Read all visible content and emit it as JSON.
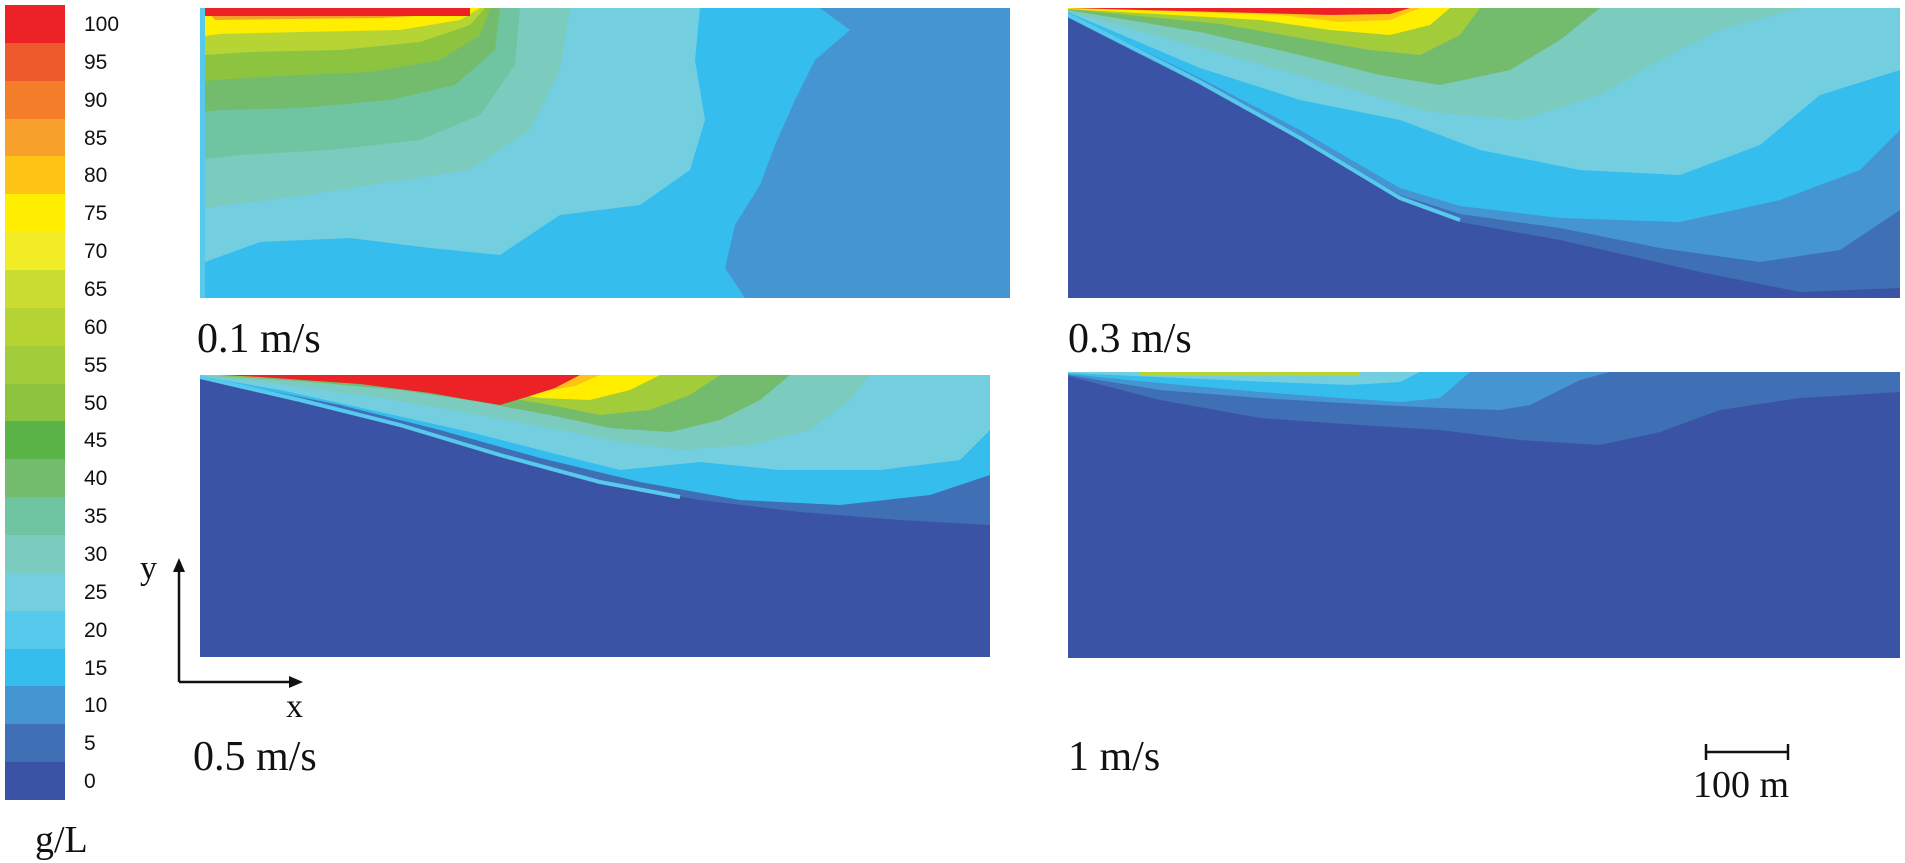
{
  "colorbar": {
    "unit": "g/L",
    "ticks": [
      "100",
      "95",
      "90",
      "85",
      "80",
      "75",
      "70",
      "65",
      "60",
      "55",
      "50",
      "45",
      "40",
      "35",
      "30",
      "25",
      "20",
      "15",
      "10",
      "5",
      "0"
    ],
    "colors": [
      "#ec2227",
      "#ee5a2c",
      "#f47d2a",
      "#f8a02c",
      "#fec315",
      "#ffee00",
      "#f2ec26",
      "#cbdc32",
      "#b6d433",
      "#a2cc39",
      "#8cc43f",
      "#5bb447",
      "#73bb6d",
      "#6fc5a1",
      "#7bcbbf",
      "#73cfe0",
      "#57c9ec",
      "#35bdee",
      "#4495d1",
      "#3f70b6",
      "#3b53a4"
    ]
  },
  "panels": [
    {
      "label": "0.1 m/s",
      "velocity_m_per_s": 0.1
    },
    {
      "label": "0.3 m/s",
      "velocity_m_per_s": 0.3
    },
    {
      "label": "0.5 m/s",
      "velocity_m_per_s": 0.5
    },
    {
      "label": "1 m/s",
      "velocity_m_per_s": 1
    }
  ],
  "axes": {
    "x": "x",
    "y": "y"
  },
  "scale_bar": {
    "label": "100 m",
    "length_m": 100
  }
}
